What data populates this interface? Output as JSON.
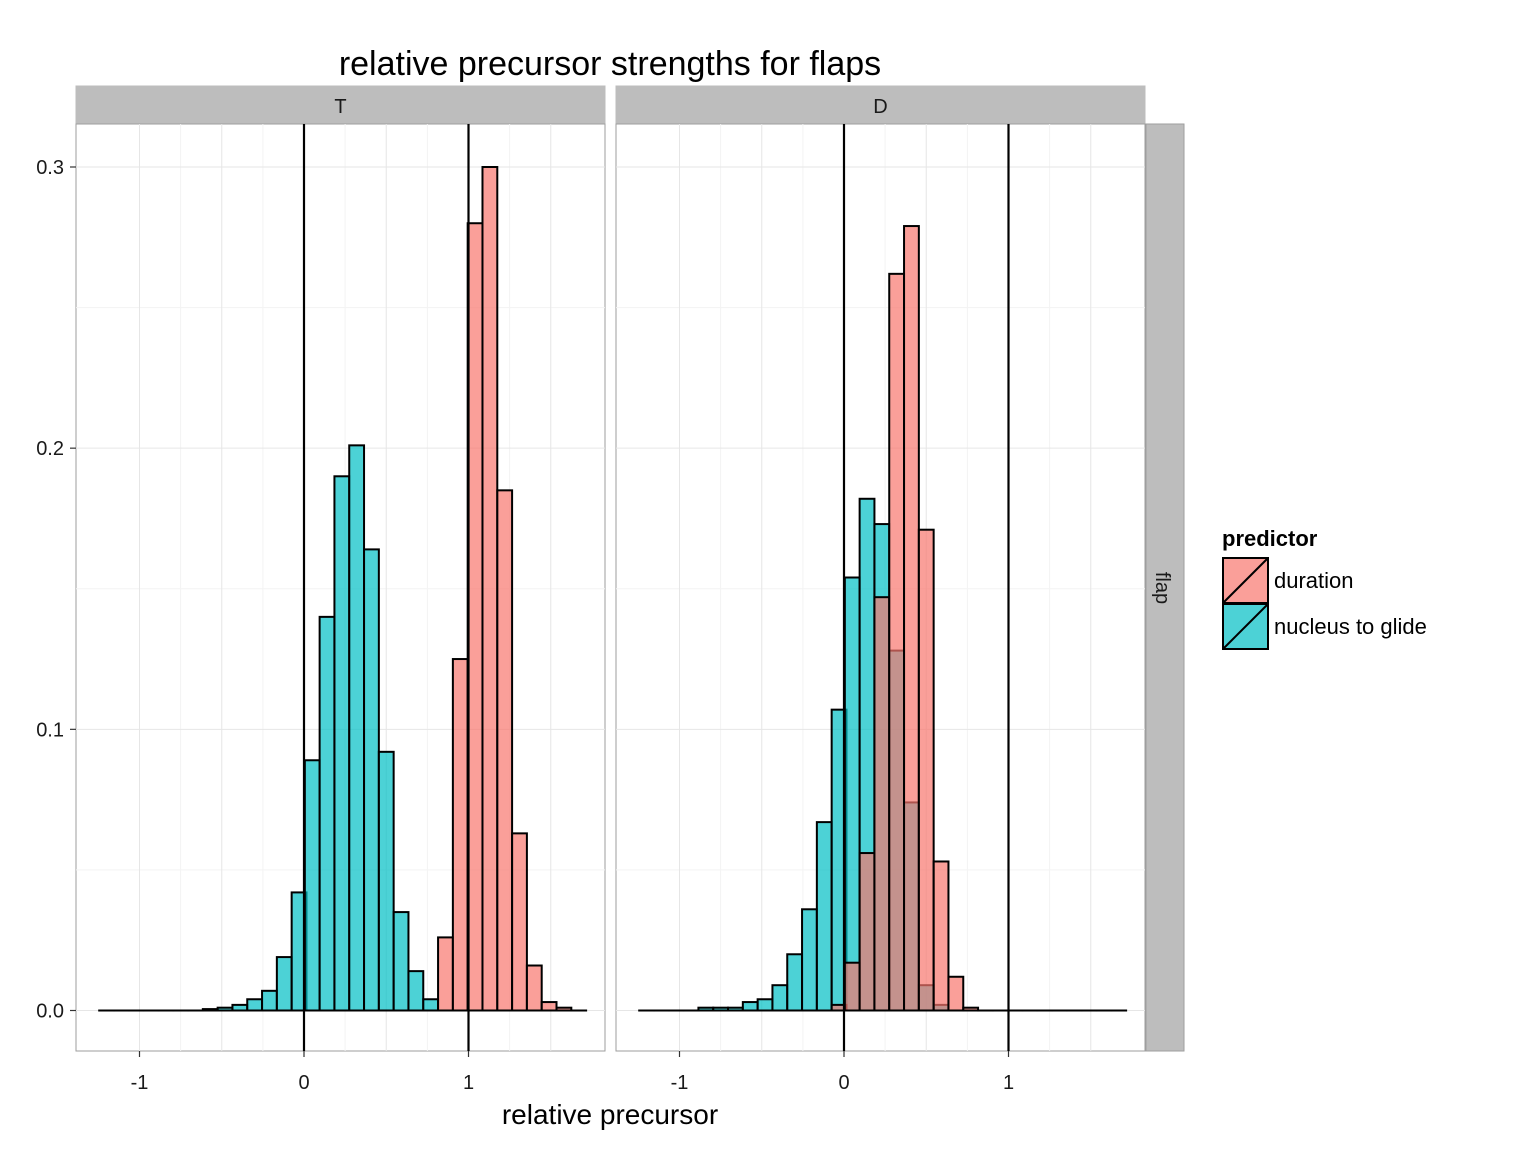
{
  "chart_data": {
    "type": "bar",
    "title": "relative precursor strengths for flaps",
    "xlabel": "relative precursor",
    "ylabel": "",
    "xlim": [
      -1.25,
      1.7
    ],
    "ylim": [
      -0.01,
      0.31
    ],
    "x_ticks": [
      -1,
      0,
      1
    ],
    "y_ticks": [
      0.0,
      0.1,
      0.2,
      0.3
    ],
    "x_tick_labels": [
      "-1",
      "0",
      "1"
    ],
    "y_tick_labels": [
      "0.0",
      "0.1",
      "0.2",
      "0.3"
    ],
    "bin_width": 0.09,
    "grid": true,
    "vlines": [
      0,
      1
    ],
    "row_strip": "flap",
    "legend": {
      "title": "predictor",
      "position": "right",
      "entries": [
        {
          "label": "duration",
          "color": "#F8766D"
        },
        {
          "label": "nucleus to glide",
          "color": "#00BFC4"
        }
      ]
    },
    "panels": [
      {
        "strip": "T",
        "series": [
          {
            "name": "nucleus to glide",
            "color": "#00BFC4",
            "x": [
              -1.2,
              -1.11,
              -1.02,
              -0.93,
              -0.84,
              -0.75,
              -0.66,
              -0.57,
              -0.48,
              -0.39,
              -0.3,
              -0.21,
              -0.12,
              -0.03,
              0.05,
              0.14,
              0.23,
              0.32,
              0.41,
              0.5,
              0.59,
              0.68,
              0.77
            ],
            "values": [
              0.0,
              0.0,
              0.0,
              0.0,
              0.0,
              0.0,
              0.0,
              0.0005,
              0.001,
              0.002,
              0.004,
              0.007,
              0.019,
              0.042,
              0.089,
              0.14,
              0.19,
              0.201,
              0.164,
              0.092,
              0.035,
              0.014,
              0.004
            ]
          },
          {
            "name": "duration",
            "color": "#F8766D",
            "x": [
              0.86,
              0.95,
              1.04,
              1.13,
              1.22,
              1.31,
              1.4,
              1.49,
              1.58,
              1.67
            ],
            "values": [
              0.026,
              0.125,
              0.28,
              0.3,
              0.185,
              0.063,
              0.016,
              0.003,
              0.001,
              0.0
            ]
          }
        ]
      },
      {
        "strip": "D",
        "series": [
          {
            "name": "nucleus to glide",
            "color": "#00BFC4",
            "x": [
              -1.2,
              -1.11,
              -1.02,
              -0.93,
              -0.84,
              -0.75,
              -0.66,
              -0.57,
              -0.48,
              -0.39,
              -0.3,
              -0.21,
              -0.12,
              -0.03,
              0.05,
              0.14,
              0.23,
              0.32,
              0.41,
              0.5,
              0.59,
              0.68,
              0.77,
              0.86
            ],
            "values": [
              0.0,
              0.0,
              0.0,
              0.0,
              0.001,
              0.001,
              0.001,
              0.003,
              0.004,
              0.009,
              0.02,
              0.036,
              0.067,
              0.107,
              0.154,
              0.182,
              0.173,
              0.128,
              0.074,
              0.009,
              0.002,
              0.0,
              0.0,
              0.0
            ]
          },
          {
            "name": "duration",
            "color": "#F8766D",
            "x": [
              -0.03,
              0.05,
              0.14,
              0.23,
              0.32,
              0.41,
              0.5,
              0.59,
              0.68,
              0.77,
              0.86,
              0.95,
              1.04,
              1.13,
              1.22,
              1.31,
              1.4,
              1.49,
              1.58,
              1.67
            ],
            "values": [
              0.002,
              0.017,
              0.056,
              0.147,
              0.262,
              0.279,
              0.171,
              0.053,
              0.012,
              0.001,
              0.0,
              0.0,
              0.0,
              0.0,
              0.0,
              0.0,
              0.0,
              0.0,
              0.0,
              0.0
            ]
          }
        ]
      }
    ]
  }
}
